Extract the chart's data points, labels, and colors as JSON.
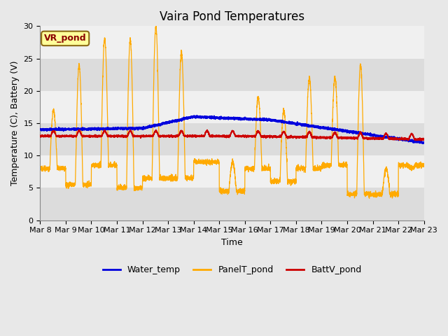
{
  "title": "Vaira Pond Temperatures",
  "xlabel": "Time",
  "ylabel": "Temperature (C), Battery (V)",
  "annotation": "VR_pond",
  "ylim": [
    0,
    30
  ],
  "yticks": [
    0,
    5,
    10,
    15,
    20,
    25,
    30
  ],
  "xtick_labels": [
    "Mar 8",
    "Mar 9",
    "Mar 10",
    "Mar 11",
    "Mar 12",
    "Mar 13",
    "Mar 14",
    "Mar 15",
    "Mar 16",
    "Mar 17",
    "Mar 18",
    "Mar 19",
    "Mar 20",
    "Mar 21",
    "Mar 22",
    "Mar 23"
  ],
  "water_color": "#0000dd",
  "panel_color": "#ffaa00",
  "batt_color": "#cc0000",
  "bg_color": "#e8e8e8",
  "plot_bg_color": "#f0f0f0",
  "band1_color": "#dcdcdc",
  "band2_color": "#f0f0f0",
  "legend_labels": [
    "Water_temp",
    "PanelT_pond",
    "BattV_pond"
  ],
  "title_fontsize": 12,
  "label_fontsize": 9,
  "tick_fontsize": 8,
  "panel_peaks": [
    17,
    24,
    28,
    28,
    30,
    26,
    9,
    9,
    19,
    17,
    22,
    22,
    24,
    8,
    8
  ],
  "panel_nights": [
    8.0,
    5.5,
    8.5,
    5.0,
    6.5,
    6.5,
    9.0,
    4.5,
    8.0,
    6.0,
    8.0,
    8.5,
    4.0,
    4.0,
    8.5
  ],
  "water_ctrl": [
    0,
    4,
    6,
    9,
    15
  ],
  "water_vals": [
    14.0,
    14.2,
    16.0,
    15.5,
    12.0
  ]
}
